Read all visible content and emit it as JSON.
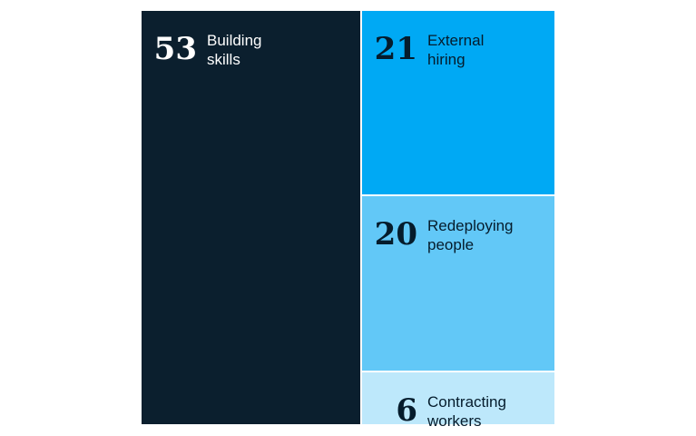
{
  "chart_data": {
    "type": "treemap",
    "title": "",
    "categories": [
      "Building skills",
      "External hiring",
      "Redeploying people",
      "Contracting workers"
    ],
    "values": [
      53,
      21,
      20,
      6
    ],
    "items": [
      {
        "value": 53,
        "value_label": "53",
        "label_line1": "Building",
        "label_line2": "skills",
        "color": "#0b1f2e",
        "text_color": "#ffffff"
      },
      {
        "value": 21,
        "value_label": "21",
        "label_line1": "External",
        "label_line2": "hiring",
        "color": "#00a9f4",
        "text_color": "#051c2c"
      },
      {
        "value": 20,
        "value_label": "20",
        "label_line1": "Redeploying",
        "label_line2": "people",
        "color": "#62c8f7",
        "text_color": "#051c2c"
      },
      {
        "value": 6,
        "value_label": "6",
        "label_line1": "Contracting",
        "label_line2": "workers",
        "color": "#bde8fb",
        "text_color": "#051c2c"
      }
    ]
  }
}
